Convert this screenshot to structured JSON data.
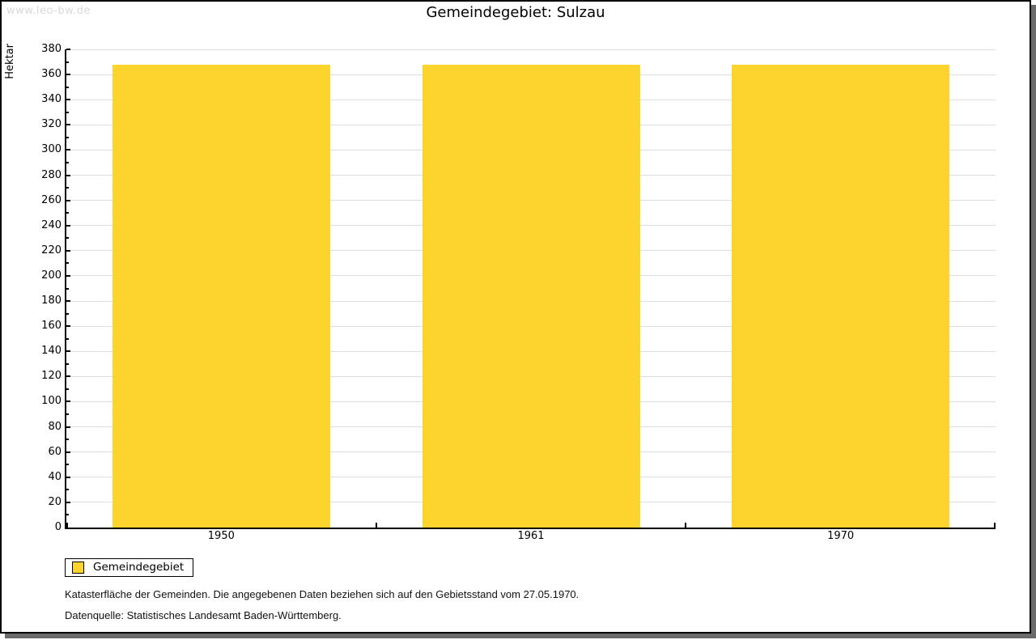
{
  "watermark": "www.leo-bw.de",
  "legend": {
    "label": "Gemeindegebiet"
  },
  "footnotes": [
    "Katasterfläche der Gemeinden. Die angegebenen Daten beziehen sich auf den Gebietsstand vom 27.05.1970.",
    "Datenquelle: Statistisches Landesamt Baden-Württemberg."
  ],
  "colors": {
    "bar": "#fdd32d",
    "grid": "#dddddd",
    "axis": "#000000",
    "shadow": "#6b6b6b",
    "watermark": "#d9d9d9"
  },
  "chart_data": {
    "type": "bar",
    "title": "Gemeindegebiet: Sulzau",
    "categories": [
      "1950",
      "1961",
      "1970"
    ],
    "series": [
      {
        "name": "Gemeindegebiet",
        "values": [
          368,
          368,
          368
        ]
      }
    ],
    "xlabel": "",
    "ylabel": "Hektar",
    "ylim": [
      0,
      380
    ],
    "ytick_step": 20,
    "minor_tick_step": 10,
    "grid": true,
    "legend_position": "bottom-left",
    "bar_color": "#fdd32d"
  }
}
